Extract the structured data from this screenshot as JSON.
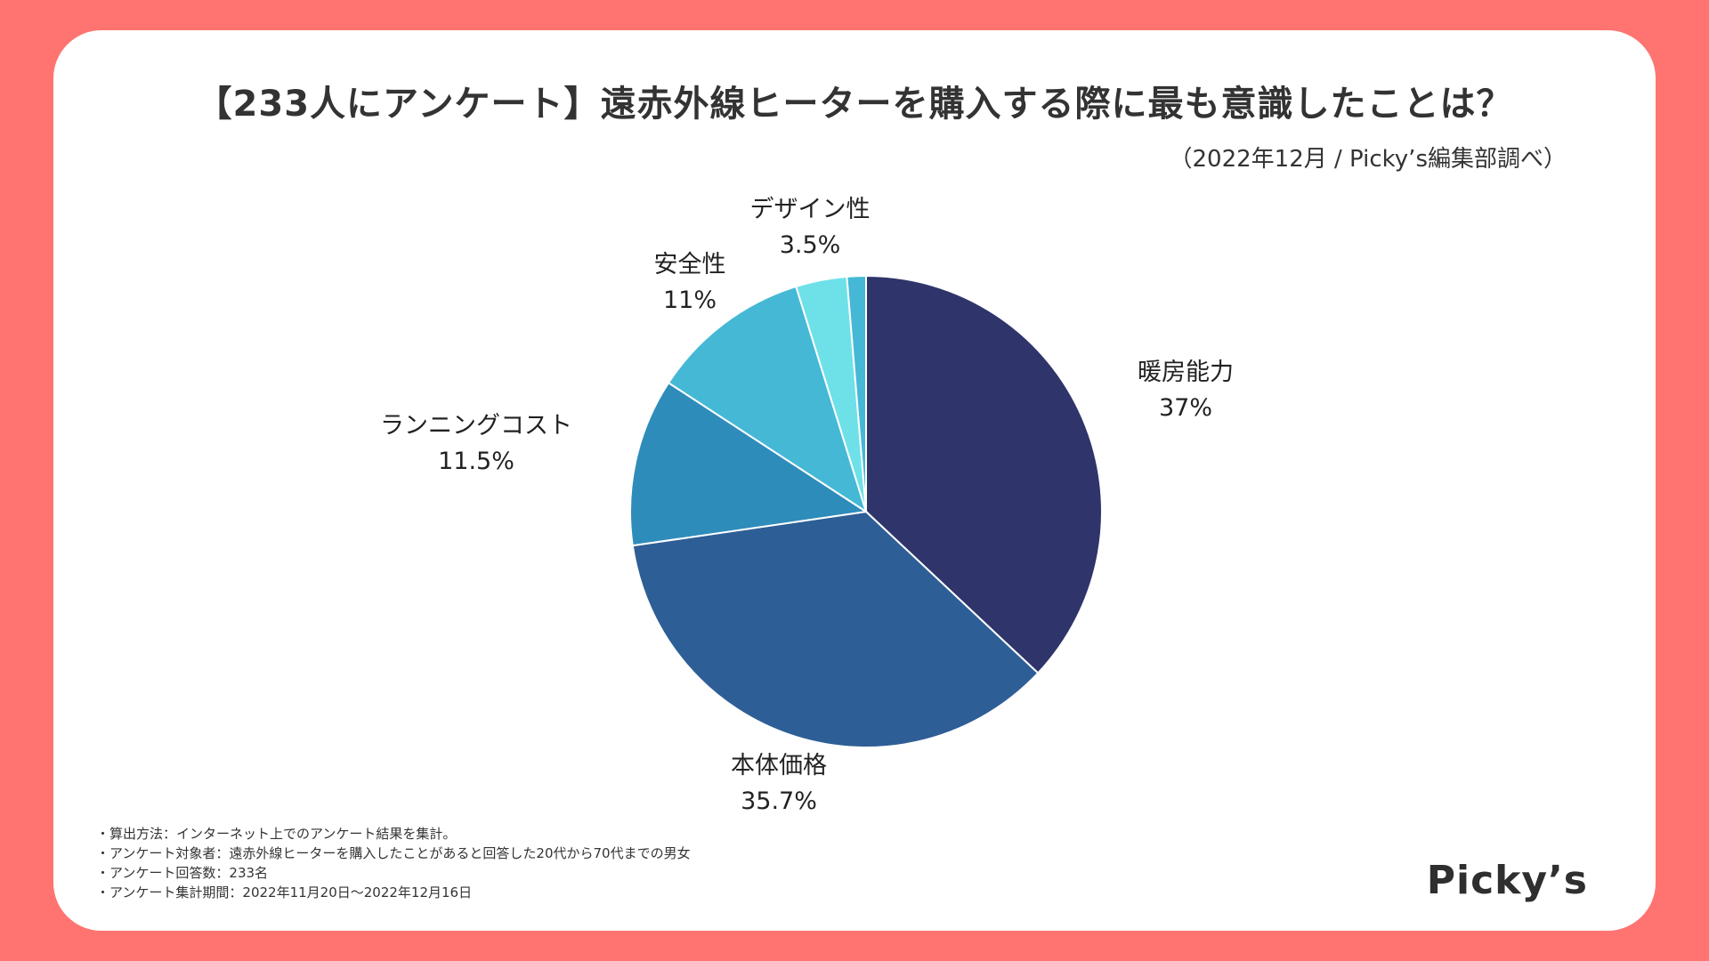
{
  "title": "【233人にアンケート】遠赤外線ヒーターを購入する際に最も意識したことは？",
  "source": "（2022年12月 / Picky’s編集部調べ）",
  "brand": "Picky’s",
  "notes": [
    "・算出方法：インターネット上でのアンケート結果を集計。",
    "・アンケート対象者：遠赤外線ヒーターを購入したことがあると回答した20代から70代までの男女",
    "・アンケート回答数：233名",
    "・アンケート集計期間：2022年11月20日〜2022年12月16日"
  ],
  "chart_data": {
    "type": "pie",
    "title": "【233人にアンケート】遠赤外線ヒーターを購入する際に最も意識したことは？",
    "start_angle_deg": 0,
    "direction": "clockwise",
    "slices": [
      {
        "label": "暖房能力",
        "value": 37,
        "display": "37%",
        "color": "#2F356A"
      },
      {
        "label": "本体価格",
        "value": 35.7,
        "display": "35.7%",
        "color": "#2E5E96"
      },
      {
        "label": "ランニングコスト",
        "value": 11.5,
        "display": "11.5%",
        "color": "#2E8CBB"
      },
      {
        "label": "安全性",
        "value": 11,
        "display": "11%",
        "color": "#45B8D6"
      },
      {
        "label": "デザイン性",
        "value": 3.5,
        "display": "3.5%",
        "color": "#6EE1E8"
      },
      {
        "label": "",
        "value": 1.3,
        "display": "",
        "color": "#45B8D6"
      }
    ]
  }
}
